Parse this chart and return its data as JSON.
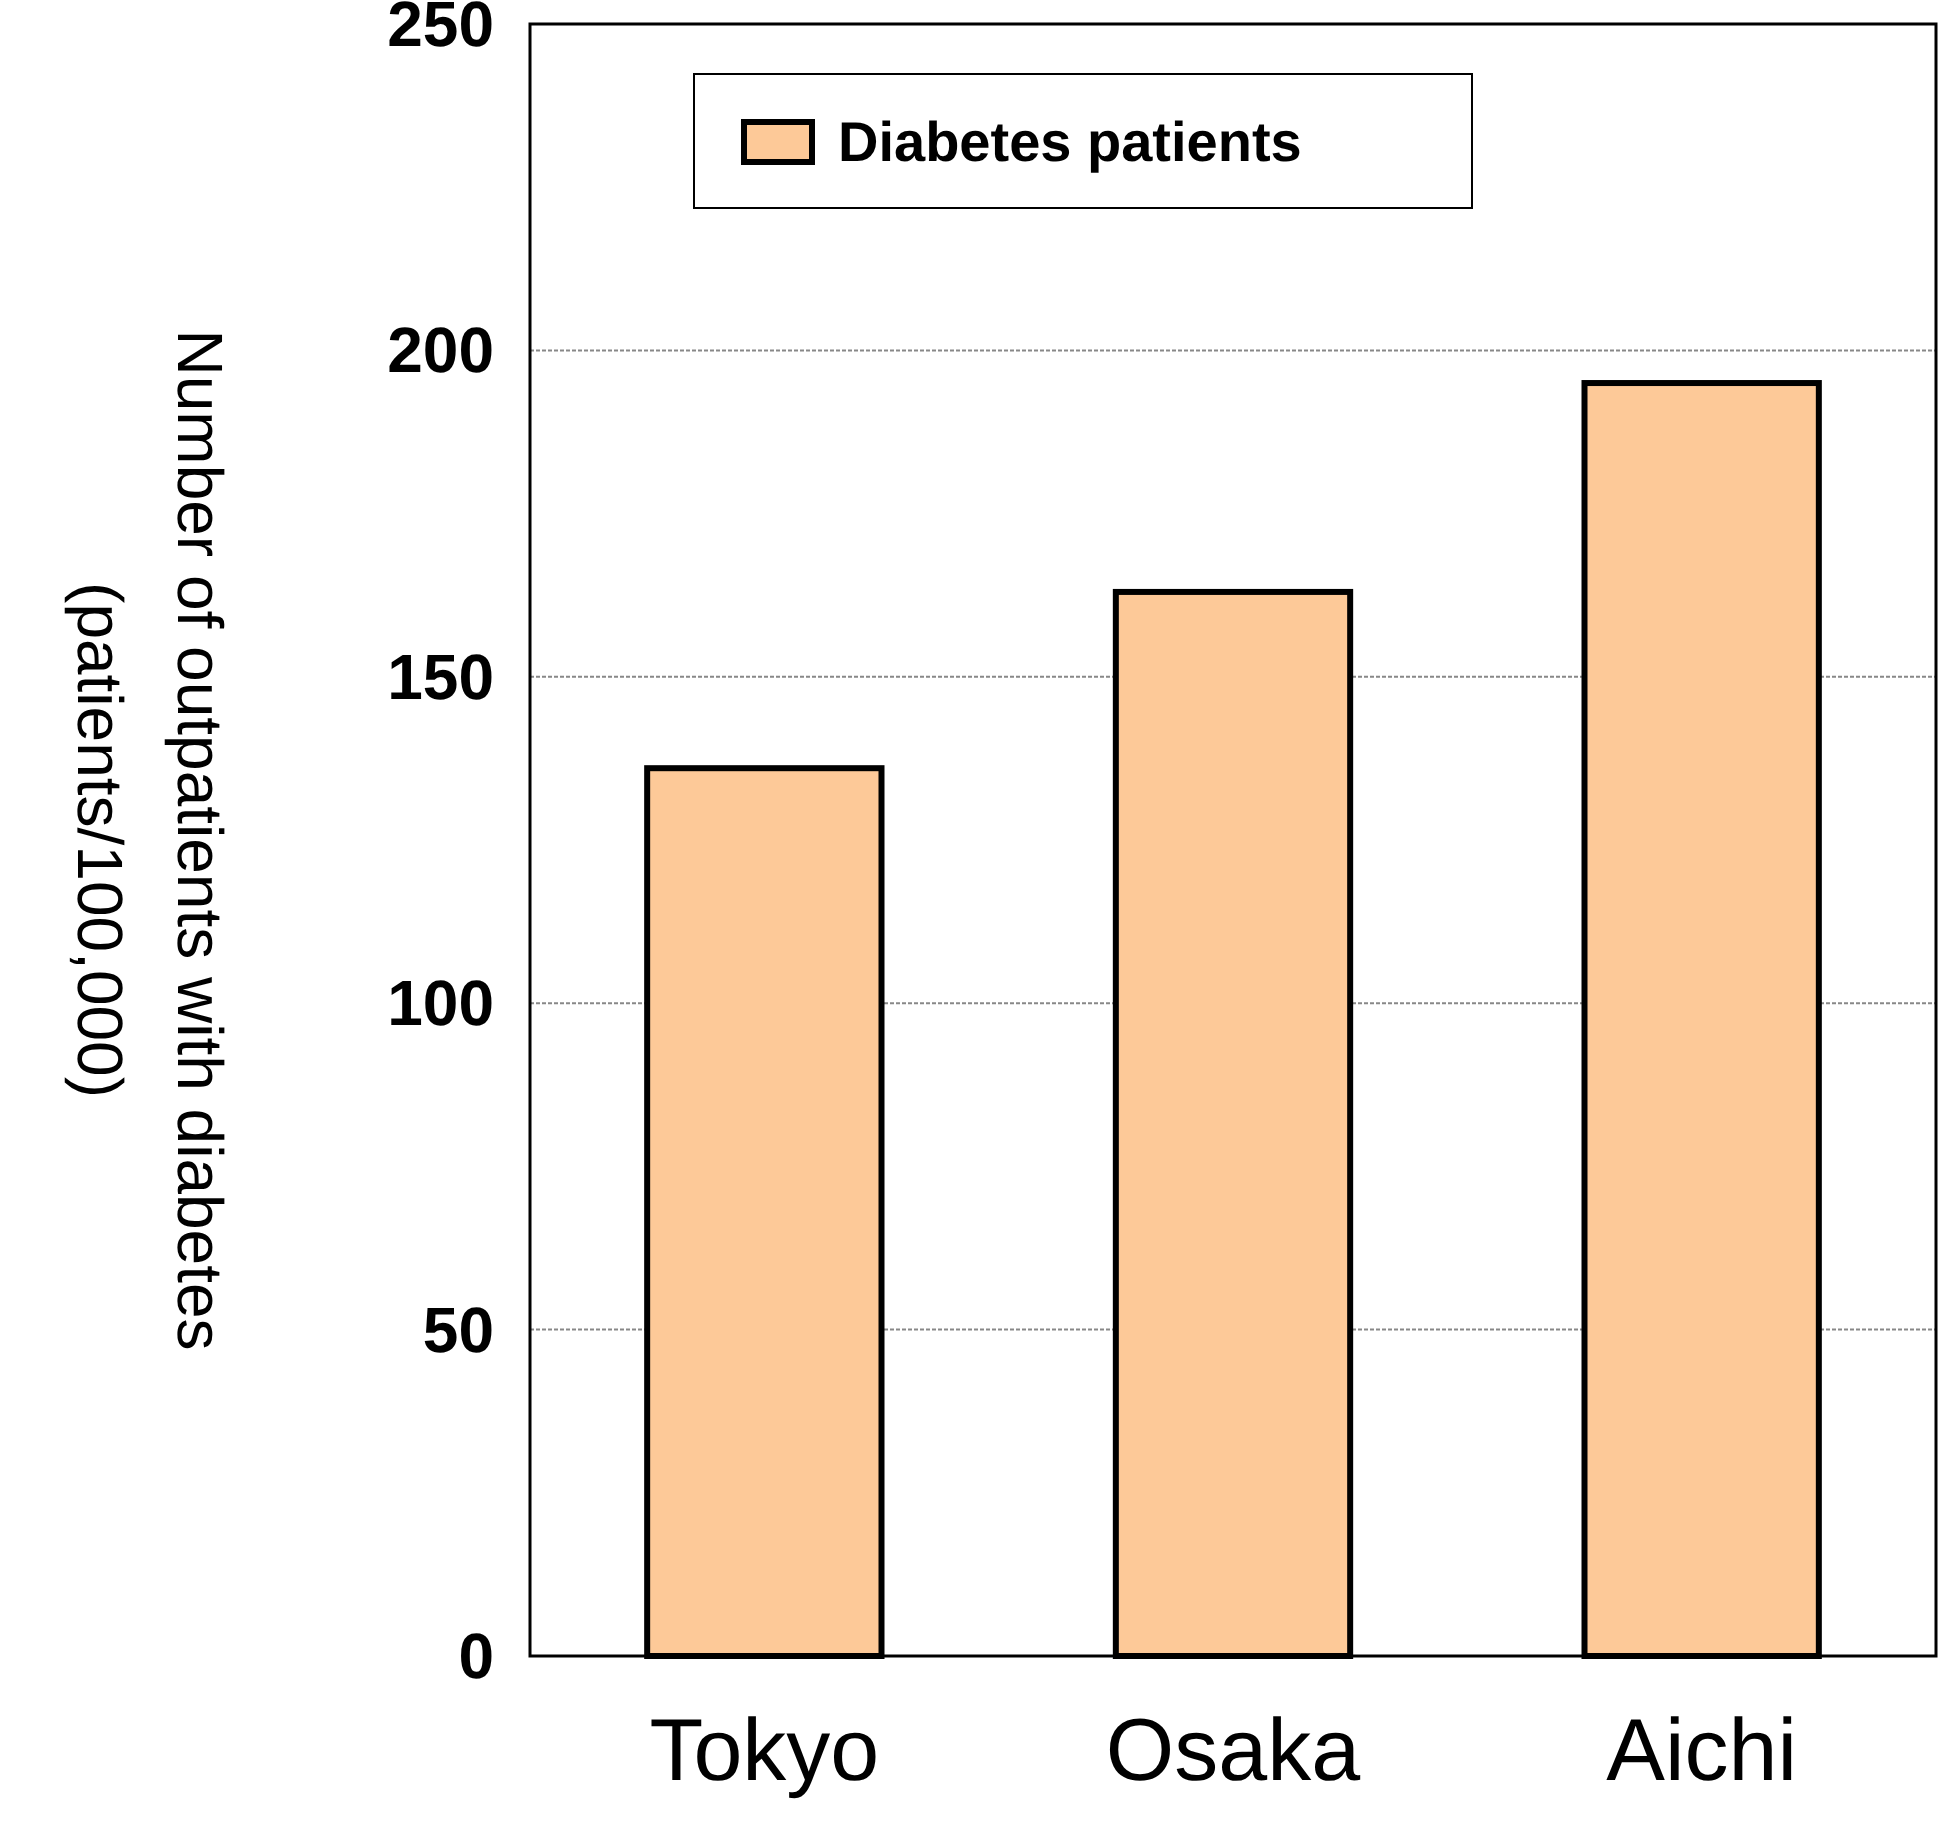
{
  "chart_data": {
    "type": "bar",
    "ylabel": "Number of outpatients with diabetes\n(patients/100,000)",
    "categories": [
      "Tokyo",
      "Osaka",
      "Aichi"
    ],
    "series": [
      {
        "name": "Diabetes patients",
        "color": "#fdc998",
        "values": [
          136,
          163,
          195
        ]
      }
    ],
    "ylim": [
      0,
      250
    ],
    "yticks": [
      0,
      50,
      100,
      150,
      200,
      250
    ],
    "grid": "y",
    "legend": "top left"
  }
}
